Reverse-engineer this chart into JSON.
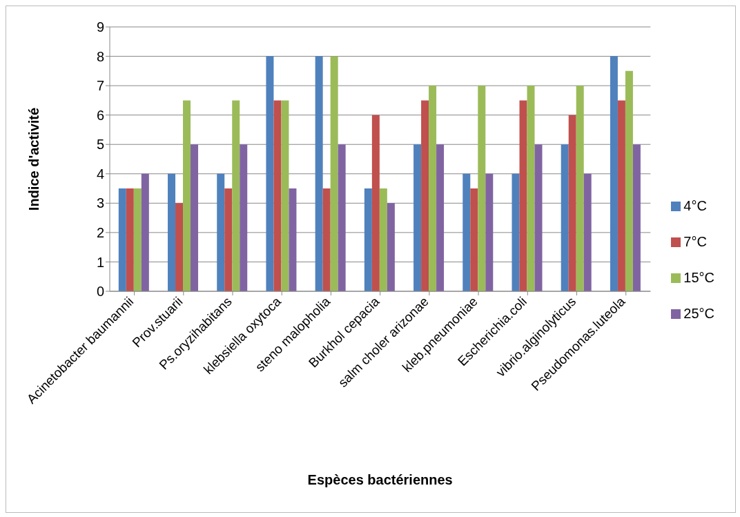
{
  "chart_data": {
    "type": "bar",
    "xlabel": "Espèces bactériennes",
    "ylabel": "Indice d'activité",
    "categories": [
      "Acinetobacter baumannii",
      "Prov.stuarii",
      "Ps.oryzihabitans",
      "klebsiella oxytoca",
      "steno malopholia",
      "Burkhol cepacia",
      "salm choler arizonae",
      "kleb.pneumoniae",
      "Escherichia.coli",
      "vibrio.alginolyticus",
      "Pseudomonas.luteola"
    ],
    "series": [
      {
        "name": "4°C",
        "color": "#4f81bd",
        "values": [
          3.5,
          4,
          4,
          8,
          8,
          3.5,
          5,
          4,
          4,
          5,
          8
        ]
      },
      {
        "name": "7°C",
        "color": "#c0504d",
        "values": [
          3.5,
          3,
          3.5,
          6.5,
          3.5,
          6,
          6.5,
          3.5,
          6.5,
          6,
          6.5
        ]
      },
      {
        "name": "15°C",
        "color": "#9bbb59",
        "values": [
          3.5,
          6.5,
          6.5,
          6.5,
          8,
          3.5,
          7,
          7,
          7,
          7,
          7.5
        ]
      },
      {
        "name": "25°C",
        "color": "#8064a2",
        "values": [
          4,
          5,
          5,
          3.5,
          5,
          3,
          5,
          4,
          5,
          4,
          5
        ]
      }
    ],
    "ylim": [
      0,
      9
    ],
    "yticks": [
      0,
      1,
      2,
      3,
      4,
      5,
      6,
      7,
      8,
      9
    ],
    "grid": "y",
    "legend": "right"
  }
}
